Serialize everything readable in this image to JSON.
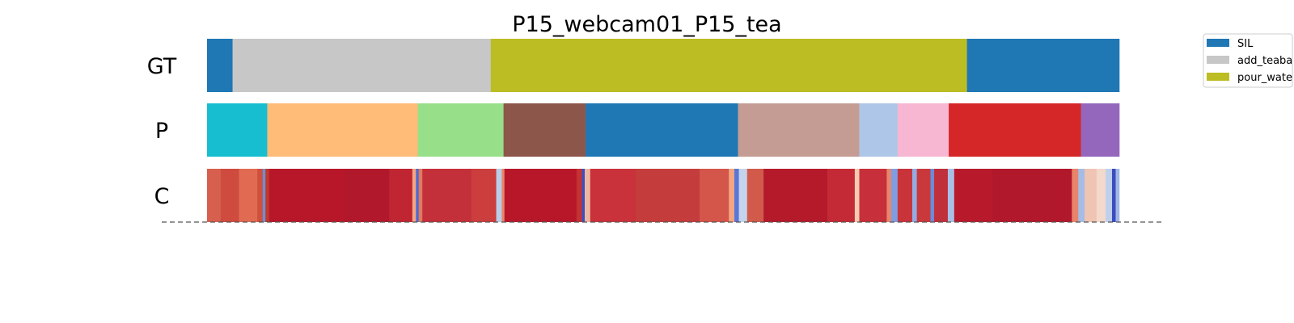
{
  "chart_data": {
    "type": "segmentation",
    "title": "P15_webcam01_P15_tea",
    "rows": [
      {
        "label": "GT",
        "segments": [
          {
            "start": 0.0,
            "end": 0.028,
            "color": "#1f77b4"
          },
          {
            "start": 0.028,
            "end": 0.311,
            "color": "#c7c7c7"
          },
          {
            "start": 0.311,
            "end": 0.833,
            "color": "#bcbd22"
          },
          {
            "start": 0.833,
            "end": 1.0,
            "color": "#1f77b4"
          }
        ]
      },
      {
        "label": "P",
        "segments": [
          {
            "start": 0.0,
            "end": 0.066,
            "color": "#17becf"
          },
          {
            "start": 0.066,
            "end": 0.231,
            "color": "#ffbb78"
          },
          {
            "start": 0.231,
            "end": 0.325,
            "color": "#98df8a"
          },
          {
            "start": 0.325,
            "end": 0.415,
            "color": "#8c564b"
          },
          {
            "start": 0.415,
            "end": 0.582,
            "color": "#1f77b4"
          },
          {
            "start": 0.582,
            "end": 0.715,
            "color": "#c49c94"
          },
          {
            "start": 0.715,
            "end": 0.757,
            "color": "#aec7e8"
          },
          {
            "start": 0.757,
            "end": 0.813,
            "color": "#f7b6d2"
          },
          {
            "start": 0.813,
            "end": 0.958,
            "color": "#d62728"
          },
          {
            "start": 0.958,
            "end": 1.0,
            "color": "#9467bd"
          }
        ]
      },
      {
        "label": "C",
        "segments": [
          {
            "start": 0.0,
            "end": 0.015,
            "color": "#d6604d"
          },
          {
            "start": 0.015,
            "end": 0.035,
            "color": "#cf4a3f"
          },
          {
            "start": 0.035,
            "end": 0.055,
            "color": "#e06b52"
          },
          {
            "start": 0.055,
            "end": 0.061,
            "color": "#d0503f"
          },
          {
            "start": 0.061,
            "end": 0.064,
            "color": "#6b8fd6"
          },
          {
            "start": 0.064,
            "end": 0.068,
            "color": "#c0392b"
          },
          {
            "start": 0.068,
            "end": 0.15,
            "color": "#b8172a"
          },
          {
            "start": 0.15,
            "end": 0.2,
            "color": "#b2182b"
          },
          {
            "start": 0.2,
            "end": 0.225,
            "color": "#c02532"
          },
          {
            "start": 0.225,
            "end": 0.229,
            "color": "#f4a582"
          },
          {
            "start": 0.229,
            "end": 0.232,
            "color": "#4c6bd1"
          },
          {
            "start": 0.232,
            "end": 0.236,
            "color": "#e07b60"
          },
          {
            "start": 0.236,
            "end": 0.29,
            "color": "#c4303a"
          },
          {
            "start": 0.29,
            "end": 0.317,
            "color": "#cc3d3d"
          },
          {
            "start": 0.317,
            "end": 0.323,
            "color": "#b9cde8"
          },
          {
            "start": 0.323,
            "end": 0.326,
            "color": "#e8856a"
          },
          {
            "start": 0.326,
            "end": 0.405,
            "color": "#b8172a"
          },
          {
            "start": 0.405,
            "end": 0.411,
            "color": "#c43236"
          },
          {
            "start": 0.411,
            "end": 0.414,
            "color": "#3a4fc1"
          },
          {
            "start": 0.414,
            "end": 0.42,
            "color": "#f0b7a0"
          },
          {
            "start": 0.42,
            "end": 0.47,
            "color": "#c9323a"
          },
          {
            "start": 0.47,
            "end": 0.54,
            "color": "#c43c3c"
          },
          {
            "start": 0.54,
            "end": 0.572,
            "color": "#d4554a"
          },
          {
            "start": 0.572,
            "end": 0.578,
            "color": "#f4a582"
          },
          {
            "start": 0.578,
            "end": 0.583,
            "color": "#5a77d6"
          },
          {
            "start": 0.583,
            "end": 0.592,
            "color": "#c5d3ec"
          },
          {
            "start": 0.592,
            "end": 0.61,
            "color": "#d15a4a"
          },
          {
            "start": 0.61,
            "end": 0.68,
            "color": "#b51a2b"
          },
          {
            "start": 0.68,
            "end": 0.71,
            "color": "#c42a35"
          },
          {
            "start": 0.71,
            "end": 0.715,
            "color": "#f7c9b0"
          },
          {
            "start": 0.715,
            "end": 0.745,
            "color": "#c7303a"
          },
          {
            "start": 0.745,
            "end": 0.75,
            "color": "#e8856a"
          },
          {
            "start": 0.75,
            "end": 0.757,
            "color": "#7f9de0"
          },
          {
            "start": 0.757,
            "end": 0.773,
            "color": "#c8343a"
          },
          {
            "start": 0.773,
            "end": 0.778,
            "color": "#93ace3"
          },
          {
            "start": 0.778,
            "end": 0.793,
            "color": "#c9393c"
          },
          {
            "start": 0.793,
            "end": 0.797,
            "color": "#6d8bd9"
          },
          {
            "start": 0.797,
            "end": 0.812,
            "color": "#c0303a"
          },
          {
            "start": 0.812,
            "end": 0.819,
            "color": "#a9c0e6"
          },
          {
            "start": 0.819,
            "end": 0.86,
            "color": "#b81a2c"
          },
          {
            "start": 0.86,
            "end": 0.948,
            "color": "#b2182b"
          },
          {
            "start": 0.948,
            "end": 0.955,
            "color": "#e8846a"
          },
          {
            "start": 0.955,
            "end": 0.962,
            "color": "#a5bde6"
          },
          {
            "start": 0.962,
            "end": 0.975,
            "color": "#efc4b3"
          },
          {
            "start": 0.975,
            "end": 0.985,
            "color": "#f3d8cc"
          },
          {
            "start": 0.985,
            "end": 0.992,
            "color": "#bfd0ec"
          },
          {
            "start": 0.992,
            "end": 0.996,
            "color": "#3b4cc0"
          },
          {
            "start": 0.996,
            "end": 1.0,
            "color": "#9fb7e3"
          }
        ]
      }
    ],
    "legend": {
      "placement": "upper-right",
      "entries": [
        {
          "label": "SIL",
          "color": "#1f77b4"
        },
        {
          "label": "add_teaba",
          "color": "#c7c7c7"
        },
        {
          "label": "pour_wate",
          "color": "#bcbd22"
        }
      ]
    },
    "baseline": {
      "style": "dashed",
      "color": "#555555"
    }
  }
}
